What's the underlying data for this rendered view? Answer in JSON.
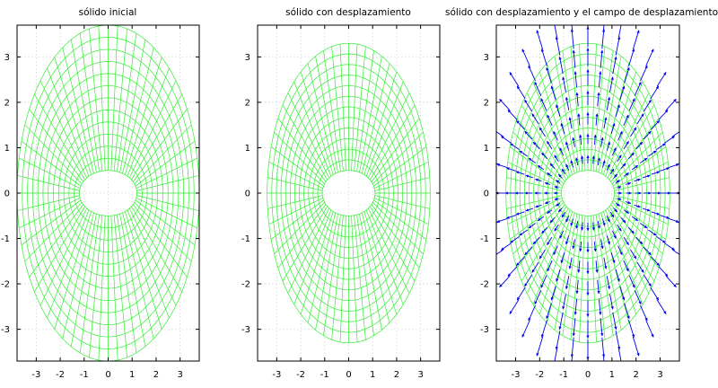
{
  "chart_data": [
    {
      "type": "line",
      "title": "sólido inicial",
      "xlabel": "",
      "ylabel": "",
      "xlim": [
        -3.8,
        3.8
      ],
      "ylim": [
        -3.7,
        3.7
      ],
      "x_ticks": [
        -3,
        -2,
        -1,
        0,
        1,
        2,
        3
      ],
      "y_ticks": [
        -3,
        -2,
        -1,
        0,
        1,
        2,
        3
      ],
      "grid": true,
      "mesh": {
        "inner_radius_x": 1.2,
        "inner_radius_y": 0.5,
        "outer_radius_x": 3.8,
        "outer_radius_y": 3.7,
        "rings": 13,
        "spokes": 60
      },
      "displaced": false,
      "show_field": false
    },
    {
      "type": "line",
      "title": "sólido con desplazamiento",
      "xlabel": "",
      "ylabel": "",
      "xlim": [
        -3.8,
        3.8
      ],
      "ylim": [
        -3.7,
        3.7
      ],
      "x_ticks": [
        -3,
        -2,
        -1,
        0,
        1,
        2,
        3
      ],
      "y_ticks": [
        -3,
        -2,
        -1,
        0,
        1,
        2,
        3
      ],
      "grid": true,
      "mesh": {
        "inner_radius_x": 1.1,
        "inner_radius_y": 0.5,
        "outer_radius_x": 3.4,
        "outer_radius_y": 3.3,
        "rings": 13,
        "spokes": 60
      },
      "displaced": true,
      "show_field": false
    },
    {
      "type": "line",
      "title": "sólido con desplazamiento y el campo de desplazamiento",
      "xlabel": "",
      "ylabel": "",
      "xlim": [
        -3.8,
        3.8
      ],
      "ylim": [
        -3.7,
        3.7
      ],
      "x_ticks": [
        -3,
        -2,
        -1,
        0,
        1,
        2,
        3
      ],
      "y_ticks": [
        -3,
        -2,
        -1,
        0,
        1,
        2,
        3
      ],
      "grid": true,
      "mesh": {
        "inner_radius_x": 1.1,
        "inner_radius_y": 0.5,
        "outer_radius_x": 3.4,
        "outer_radius_y": 3.3,
        "rings": 13,
        "spokes": 60
      },
      "displaced": true,
      "show_field": true,
      "field": {
        "spokes": 36,
        "rings": 8
      }
    }
  ],
  "colors": {
    "mesh": "#33ee33",
    "arrow": "#0000ee",
    "grid": "#c8c8c8",
    "axes": "#000000"
  }
}
